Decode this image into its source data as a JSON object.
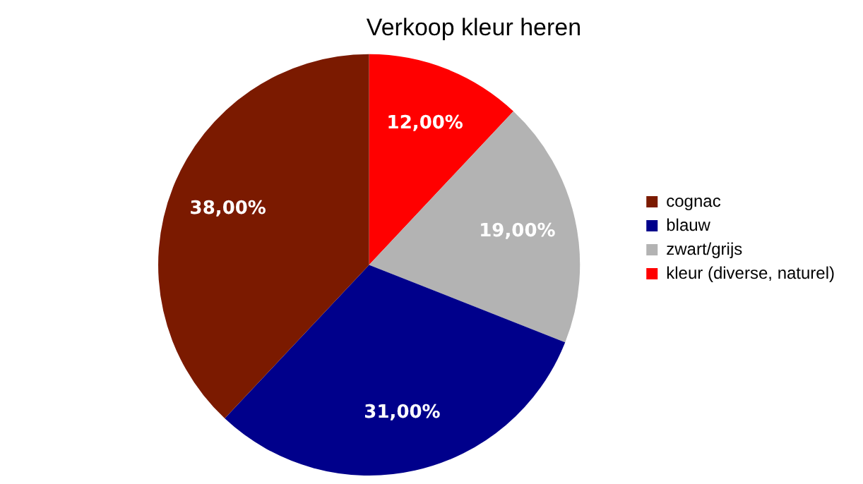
{
  "chart_data": {
    "type": "pie",
    "title": "Verkoop kleur heren",
    "categories": [
      "cognac",
      "blauw",
      "zwart/grijs",
      "kleur (diverse, naturel)"
    ],
    "values": [
      38,
      31,
      19,
      12
    ],
    "colors": [
      "#7b1a00",
      "#00008b",
      "#b3b3b3",
      "#ff0000"
    ],
    "value_labels": [
      "38,00%",
      "31,00%",
      "19,00%",
      "12,00%"
    ],
    "legend": "right"
  }
}
